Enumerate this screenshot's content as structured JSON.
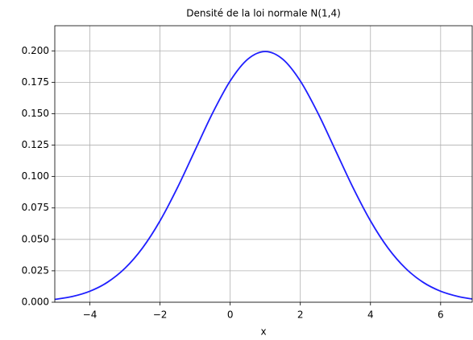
{
  "chart_data": {
    "type": "line",
    "title": "Densité de la loi normale N(1,4)",
    "x_label": "x",
    "x": [
      -5,
      -4.5,
      -4,
      -3.5,
      -3,
      -2.5,
      -2,
      -1.5,
      -1,
      -0.5,
      0,
      0.5,
      1,
      1.5,
      2,
      2.5,
      3,
      3.5,
      4,
      4.5,
      5,
      5.5,
      6,
      6.5,
      6.9
    ],
    "series": [
      {
        "name": "N(1,4)",
        "color": "#1f1fff",
        "values": [
          0.00222,
          0.00455,
          0.00876,
          0.01587,
          0.027,
          0.04314,
          0.06476,
          0.09132,
          0.12099,
          0.15057,
          0.17603,
          0.19333,
          0.19947,
          0.19333,
          0.17603,
          0.15057,
          0.12099,
          0.09132,
          0.06476,
          0.04314,
          0.027,
          0.01587,
          0.00876,
          0.00455,
          0.00257
        ]
      }
    ],
    "xlim": [
      -5,
      6.9
    ],
    "xticks": [
      {
        "value": -4,
        "label": "−4"
      },
      {
        "value": -2,
        "label": "−2"
      },
      0,
      2,
      4,
      6
    ],
    "ylim": [
      0,
      0.22
    ],
    "yticks": [
      {
        "value": 0,
        "label": "0.000"
      },
      {
        "value": 0.025,
        "label": "0.025"
      },
      {
        "value": 0.05,
        "label": "0.050"
      },
      {
        "value": 0.075,
        "label": "0.075"
      },
      {
        "value": 0.1,
        "label": "0.100"
      },
      {
        "value": 0.125,
        "label": "0.125"
      },
      {
        "value": 0.15,
        "label": "0.150"
      },
      {
        "value": 0.175,
        "label": "0.175"
      },
      {
        "value": 0.2,
        "label": "0.200"
      }
    ],
    "grid": true
  }
}
